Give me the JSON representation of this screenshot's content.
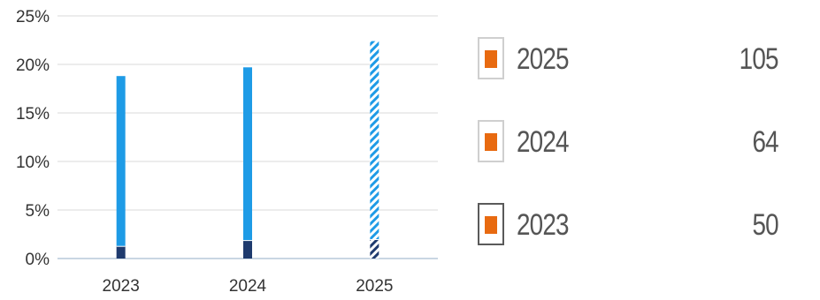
{
  "chart_data": {
    "type": "bar",
    "stacked": true,
    "categories": [
      "2023",
      "2024",
      "2025"
    ],
    "series": [
      {
        "name": "",
        "values": [
          1.3,
          1.9,
          2.0
        ],
        "color": "#1e3a6e"
      },
      {
        "name": "",
        "values": [
          17.5,
          17.8,
          20.4
        ],
        "color": "#1e9be6"
      }
    ],
    "hatched_categories": [
      "2025"
    ],
    "ylim": [
      0,
      25
    ],
    "yticks": [
      "0%",
      "5%",
      "10%",
      "15%",
      "20%",
      "25%"
    ],
    "ytick_values": [
      0,
      5,
      10,
      15,
      20,
      25
    ],
    "grid": true,
    "legend": [
      {
        "label": "2025",
        "value": "105",
        "swatch_color": "#e86a10"
      },
      {
        "label": "2024",
        "value": "64",
        "swatch_color": "#e86a10"
      },
      {
        "label": "2023",
        "value": "50",
        "swatch_color": "#e86a10"
      }
    ]
  }
}
